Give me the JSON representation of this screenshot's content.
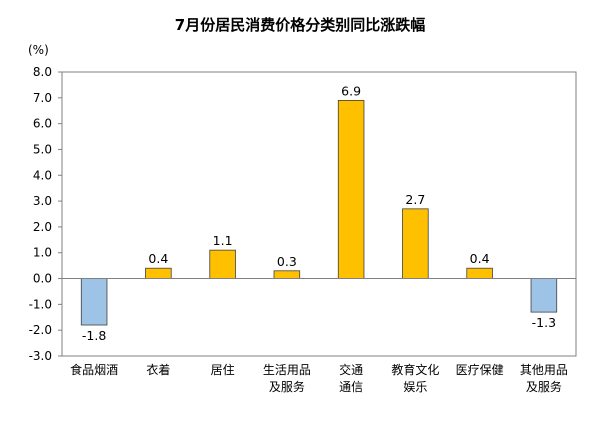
{
  "chart_data": {
    "type": "bar",
    "title": "7月份居民消费价格分类别同比涨跌幅",
    "ylabel": "(%)",
    "xlabel": "",
    "ylim": [
      -3.0,
      8.0
    ],
    "ytick_step": 1.0,
    "yticks": [
      "8.0",
      "7.0",
      "6.0",
      "5.0",
      "4.0",
      "3.0",
      "2.0",
      "1.0",
      "0.0",
      "-1.0",
      "-2.0",
      "-3.0"
    ],
    "categories": [
      [
        "食品烟酒"
      ],
      [
        "衣着"
      ],
      [
        "居住"
      ],
      [
        "生活用品",
        "及服务"
      ],
      [
        "交通",
        "通信"
      ],
      [
        "教育文化",
        "娱乐"
      ],
      [
        "医疗保健"
      ],
      [
        "其他用品",
        "及服务"
      ]
    ],
    "values": [
      -1.8,
      0.4,
      1.1,
      0.3,
      6.9,
      2.7,
      0.4,
      -1.3
    ],
    "data_labels": [
      "-1.8",
      "0.4",
      "1.1",
      "0.3",
      "6.9",
      "2.7",
      "0.4",
      "-1.3"
    ],
    "grid": false,
    "legend": "none",
    "colors": {
      "positive_fill": "#FFC000",
      "positive_stroke": "#404040",
      "negative_fill": "#9DC3E6",
      "negative_stroke": "#404040",
      "axis": "#808080",
      "text": "#000000"
    }
  }
}
